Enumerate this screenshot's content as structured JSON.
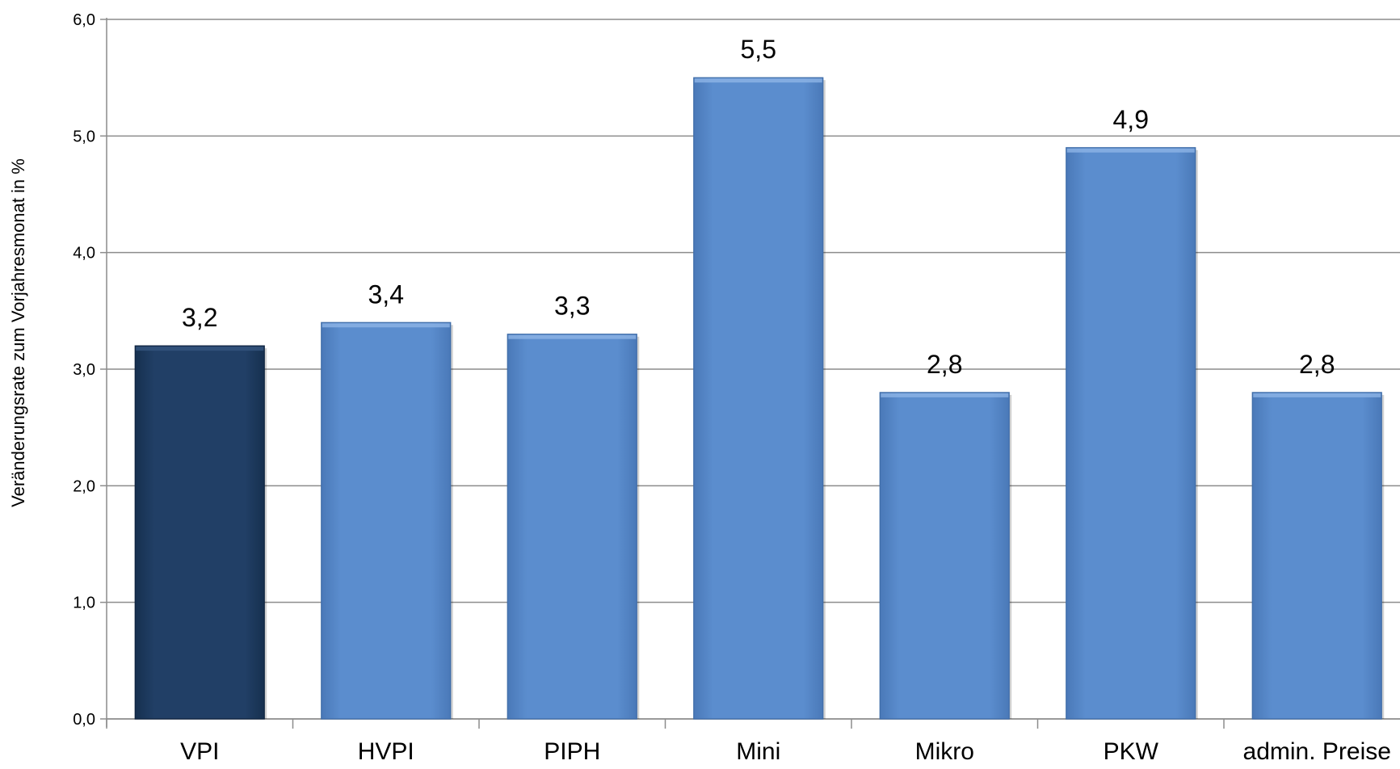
{
  "chart_data": {
    "type": "bar",
    "categories": [
      "VPI",
      "HVPI",
      "PIPH",
      "Mini",
      "Mikro",
      "PKW",
      "admin. Preise"
    ],
    "values": [
      3.2,
      3.4,
      3.3,
      5.5,
      2.8,
      4.9,
      2.8
    ],
    "value_labels": [
      "3,2",
      "3,4",
      "3,3",
      "5,5",
      "2,8",
      "4,9",
      "2,8"
    ],
    "ylabel": "Veränderungsrate zum Vorjahresmonat in %",
    "xlabel": "",
    "title": "",
    "ylim": [
      0,
      6
    ],
    "yticks": [
      {
        "value": 0,
        "label": "0,0"
      },
      {
        "value": 1,
        "label": "1,0"
      },
      {
        "value": 2,
        "label": "2,0"
      },
      {
        "value": 3,
        "label": "3,0"
      },
      {
        "value": 4,
        "label": "4,0"
      },
      {
        "value": 5,
        "label": "5,0"
      },
      {
        "value": 6,
        "label": "6,0"
      }
    ],
    "grid": true,
    "legend": "none",
    "colors": {
      "highlight_bar": "#1f3c63",
      "bar": "#5889c9",
      "gridline": "#8c8c8c",
      "axis": "#8c8c8c"
    },
    "highlight_index": 0
  }
}
